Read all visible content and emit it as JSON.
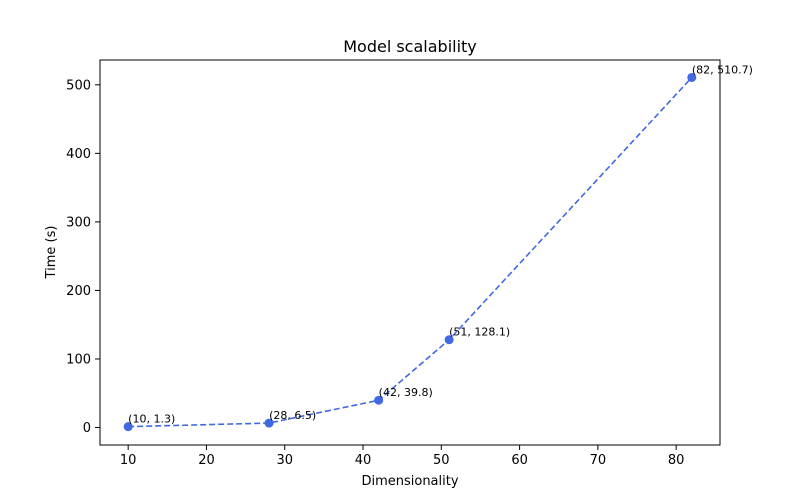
{
  "chart_data": {
    "type": "line",
    "title": "Model scalability",
    "xlabel": "Dimensionality",
    "ylabel": "Time (s)",
    "xlim": [
      6.4,
      85.6
    ],
    "ylim": [
      -25.5,
      536.2
    ],
    "x_ticks": [
      10,
      20,
      30,
      40,
      50,
      60,
      70,
      80
    ],
    "y_ticks": [
      0,
      100,
      200,
      300,
      400,
      500
    ],
    "grid": false,
    "series": [
      {
        "x": [
          10,
          28,
          42,
          51,
          82
        ],
        "y": [
          1.3,
          6.5,
          39.8,
          128.1,
          510.7
        ],
        "color": "#4169e1",
        "line_style": "dashed",
        "marker": "circle"
      }
    ],
    "point_labels": [
      "(10, 1.3)",
      "(28, 6.5)",
      "(42, 39.8)",
      "(51, 128.1)",
      "(82, 510.7)"
    ]
  }
}
